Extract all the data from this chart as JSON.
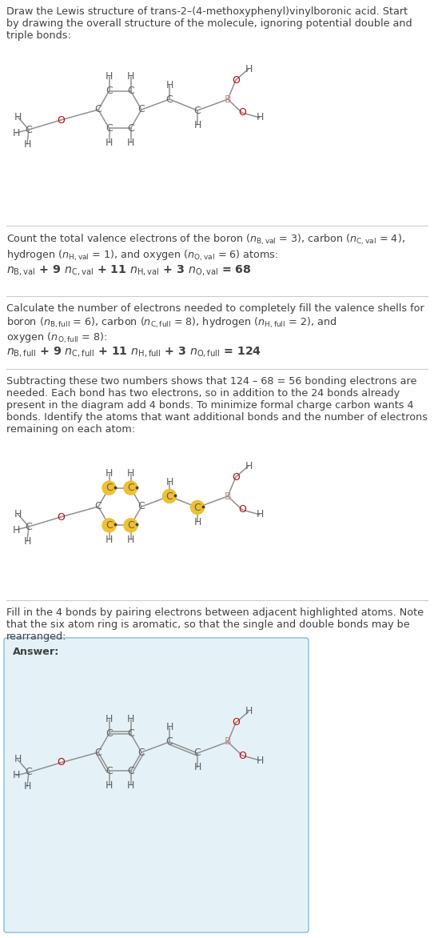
{
  "bg_color": "#ffffff",
  "text_color": "#404040",
  "atom_C_color": "#606060",
  "atom_H_color": "#606060",
  "atom_O_color": "#cc0000",
  "atom_B_color": "#cc8888",
  "highlight_C_color": "#f0c030",
  "highlight_O_color": "#cc0000",
  "bond_color": "#909090",
  "answer_bg": "#e4f2f8",
  "answer_border": "#90c8e0",
  "font_size_text": 9.2,
  "font_size_atom": 9.0
}
